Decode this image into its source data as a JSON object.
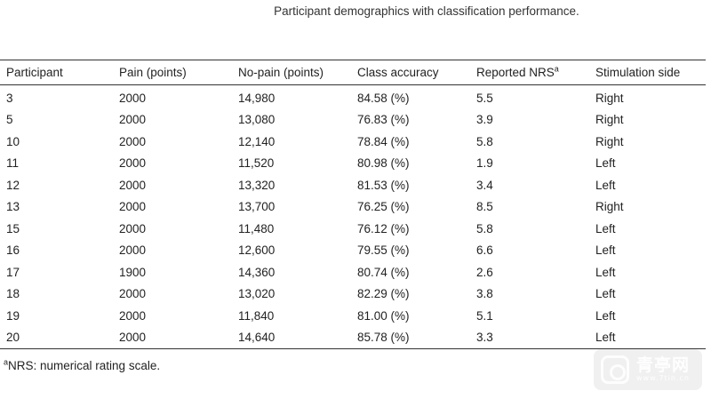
{
  "caption": "Participant demographics with classification performance.",
  "table": {
    "headers": {
      "participant": "Participant",
      "pain": "Pain (points)",
      "nopain": "No-pain (points)",
      "accuracy": "Class accuracy",
      "nrs": "Reported NRS",
      "nrs_sup": "a",
      "side": "Stimulation side"
    },
    "rows": [
      {
        "participant": "3",
        "pain": "2000",
        "nopain": "14,980",
        "accuracy": "84.58 (%)",
        "nrs": "5.5",
        "side": "Right"
      },
      {
        "participant": "5",
        "pain": "2000",
        "nopain": "13,080",
        "accuracy": "76.83 (%)",
        "nrs": "3.9",
        "side": "Right"
      },
      {
        "participant": "10",
        "pain": "2000",
        "nopain": "12,140",
        "accuracy": "78.84 (%)",
        "nrs": "5.8",
        "side": "Right"
      },
      {
        "participant": "11",
        "pain": "2000",
        "nopain": "11,520",
        "accuracy": "80.98 (%)",
        "nrs": "1.9",
        "side": "Left"
      },
      {
        "participant": "12",
        "pain": "2000",
        "nopain": "13,320",
        "accuracy": "81.53 (%)",
        "nrs": "3.4",
        "side": "Left"
      },
      {
        "participant": "13",
        "pain": "2000",
        "nopain": "13,700",
        "accuracy": "76.25 (%)",
        "nrs": "8.5",
        "side": "Right"
      },
      {
        "participant": "15",
        "pain": "2000",
        "nopain": "11,480",
        "accuracy": "76.12 (%)",
        "nrs": "5.8",
        "side": "Left"
      },
      {
        "participant": "16",
        "pain": "2000",
        "nopain": "12,600",
        "accuracy": "79.55 (%)",
        "nrs": "6.6",
        "side": "Left"
      },
      {
        "participant": "17",
        "pain": "1900",
        "nopain": "14,360",
        "accuracy": "80.74 (%)",
        "nrs": "2.6",
        "side": "Left"
      },
      {
        "participant": "18",
        "pain": "2000",
        "nopain": "13,020",
        "accuracy": "82.29 (%)",
        "nrs": "3.8",
        "side": "Left"
      },
      {
        "participant": "19",
        "pain": "2000",
        "nopain": "11,840",
        "accuracy": "81.00 (%)",
        "nrs": "5.1",
        "side": "Left"
      },
      {
        "participant": "20",
        "pain": "2000",
        "nopain": "14,640",
        "accuracy": "85.78 (%)",
        "nrs": "3.3",
        "side": "Left"
      }
    ]
  },
  "footnote": {
    "sup": "a",
    "text": "NRS: numerical rating scale."
  },
  "watermark": {
    "logo_icon": "watermark-logo-icon",
    "main": "青亭网",
    "sub": "www.7tin.cn"
  }
}
